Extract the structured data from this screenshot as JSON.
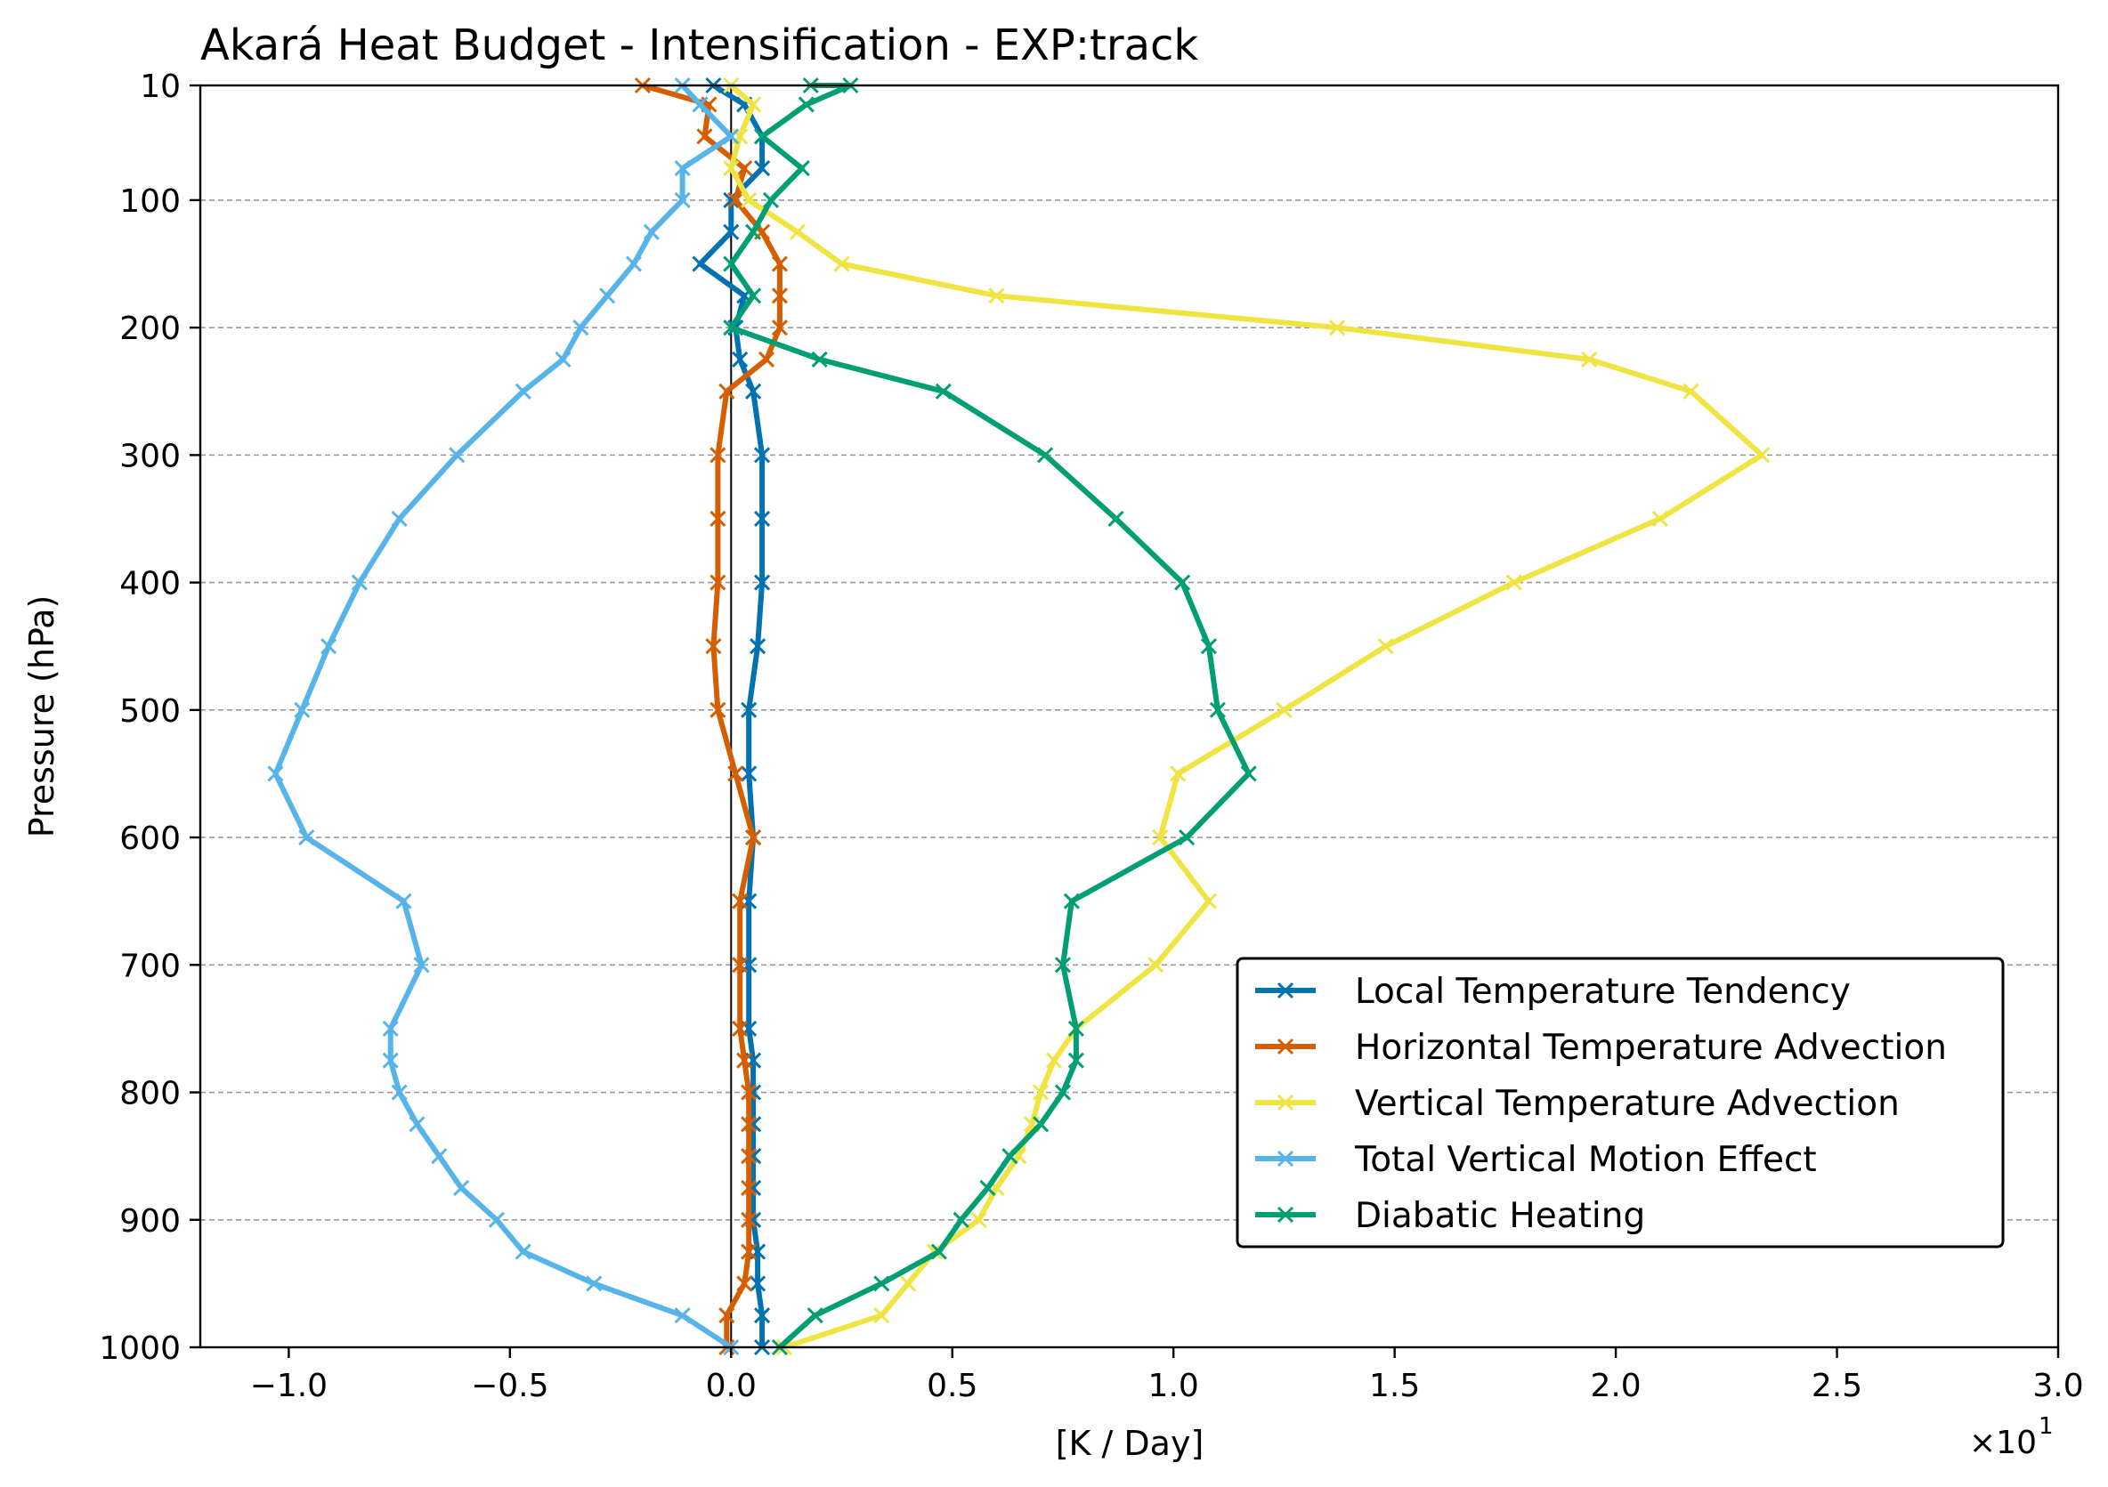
{
  "chart_data": {
    "type": "line",
    "title": "Akará Heat Budget - Intensification - EXP:track",
    "xlabel": "[K / Day]",
    "ylabel": "Pressure (hPa)",
    "x_scale_note": "×10",
    "x_scale_exponent": "1",
    "xlim": [
      -1.2,
      3.0
    ],
    "ylim": [
      1000,
      10
    ],
    "y_inverted": true,
    "xticks": [
      -1.0,
      -0.5,
      0.0,
      0.5,
      1.0,
      1.5,
      2.0,
      2.5,
      3.0
    ],
    "xtick_labels": [
      "−1.0",
      "−0.5",
      "0.0",
      "0.5",
      "1.0",
      "1.5",
      "2.0",
      "2.5",
      "3.0"
    ],
    "yticks": [
      10,
      100,
      200,
      300,
      400,
      500,
      600,
      700,
      800,
      900,
      1000
    ],
    "ytick_labels": [
      "10",
      "100",
      "200",
      "300",
      "400",
      "500",
      "600",
      "700",
      "800",
      "900",
      "1000"
    ],
    "grid": "horizontal dashed",
    "zero_line": true,
    "legend_position": "lower right",
    "series": [
      {
        "name": "Local Temperature Tendency",
        "color": "#0072b2",
        "points": [
          [
            0.07,
            1000
          ],
          [
            0.07,
            975
          ],
          [
            0.06,
            950
          ],
          [
            0.06,
            925
          ],
          [
            0.05,
            900
          ],
          [
            0.05,
            875
          ],
          [
            0.05,
            850
          ],
          [
            0.05,
            825
          ],
          [
            0.05,
            800
          ],
          [
            0.05,
            775
          ],
          [
            0.04,
            750
          ],
          [
            0.04,
            700
          ],
          [
            0.04,
            650
          ],
          [
            0.05,
            600
          ],
          [
            0.04,
            550
          ],
          [
            0.04,
            500
          ],
          [
            0.06,
            450
          ],
          [
            0.07,
            400
          ],
          [
            0.07,
            350
          ],
          [
            0.07,
            300
          ],
          [
            0.05,
            250
          ],
          [
            0.02,
            225
          ],
          [
            0.01,
            200
          ],
          [
            0.03,
            175
          ],
          [
            -0.07,
            150
          ],
          [
            0.0,
            125
          ],
          [
            0.0,
            100
          ],
          [
            0.07,
            75
          ],
          [
            0.07,
            50
          ],
          [
            0.03,
            25
          ],
          [
            -0.04,
            10
          ]
        ]
      },
      {
        "name": "Horizontal Temperature Advection",
        "color": "#d55e00",
        "points": [
          [
            -0.01,
            1000
          ],
          [
            -0.01,
            975
          ],
          [
            0.03,
            950
          ],
          [
            0.04,
            925
          ],
          [
            0.04,
            900
          ],
          [
            0.04,
            875
          ],
          [
            0.04,
            850
          ],
          [
            0.04,
            825
          ],
          [
            0.04,
            800
          ],
          [
            0.03,
            775
          ],
          [
            0.02,
            750
          ],
          [
            0.02,
            700
          ],
          [
            0.02,
            650
          ],
          [
            0.05,
            600
          ],
          [
            0.01,
            550
          ],
          [
            -0.03,
            500
          ],
          [
            -0.04,
            450
          ],
          [
            -0.03,
            400
          ],
          [
            -0.03,
            350
          ],
          [
            -0.03,
            300
          ],
          [
            -0.01,
            250
          ],
          [
            0.08,
            225
          ],
          [
            0.11,
            200
          ],
          [
            0.11,
            175
          ],
          [
            0.11,
            150
          ],
          [
            0.07,
            125
          ],
          [
            0.01,
            100
          ],
          [
            0.03,
            75
          ],
          [
            -0.06,
            50
          ],
          [
            -0.05,
            25
          ],
          [
            -0.2,
            10
          ]
        ]
      },
      {
        "name": "Vertical Temperature Advection",
        "color": "#f0e442",
        "points": [
          [
            0.12,
            1000
          ],
          [
            0.34,
            975
          ],
          [
            0.4,
            950
          ],
          [
            0.46,
            925
          ],
          [
            0.56,
            900
          ],
          [
            0.6,
            875
          ],
          [
            0.65,
            850
          ],
          [
            0.68,
            825
          ],
          [
            0.7,
            800
          ],
          [
            0.73,
            775
          ],
          [
            0.78,
            750
          ],
          [
            0.96,
            700
          ],
          [
            1.08,
            650
          ],
          [
            0.97,
            600
          ],
          [
            1.01,
            550
          ],
          [
            1.25,
            500
          ],
          [
            1.48,
            450
          ],
          [
            1.77,
            400
          ],
          [
            2.1,
            350
          ],
          [
            2.33,
            300
          ],
          [
            2.17,
            250
          ],
          [
            1.94,
            225
          ],
          [
            1.37,
            200
          ],
          [
            0.6,
            175
          ],
          [
            0.25,
            150
          ],
          [
            0.15,
            125
          ],
          [
            0.04,
            100
          ],
          [
            0.0,
            75
          ],
          [
            0.02,
            50
          ],
          [
            0.05,
            25
          ],
          [
            0.0,
            10
          ]
        ]
      },
      {
        "name": "Total Vertical Motion Effect",
        "color": "#56b4e9",
        "points": [
          [
            0.0,
            1000
          ],
          [
            -0.11,
            975
          ],
          [
            -0.31,
            950
          ],
          [
            -0.47,
            925
          ],
          [
            -0.53,
            900
          ],
          [
            -0.61,
            875
          ],
          [
            -0.66,
            850
          ],
          [
            -0.71,
            825
          ],
          [
            -0.75,
            800
          ],
          [
            -0.77,
            775
          ],
          [
            -0.77,
            750
          ],
          [
            -0.7,
            700
          ],
          [
            -0.74,
            650
          ],
          [
            -0.96,
            600
          ],
          [
            -1.03,
            550
          ],
          [
            -0.97,
            500
          ],
          [
            -0.91,
            450
          ],
          [
            -0.84,
            400
          ],
          [
            -0.75,
            350
          ],
          [
            -0.62,
            300
          ],
          [
            -0.47,
            250
          ],
          [
            -0.38,
            225
          ],
          [
            -0.34,
            200
          ],
          [
            -0.28,
            175
          ],
          [
            -0.22,
            150
          ],
          [
            -0.18,
            125
          ],
          [
            -0.11,
            100
          ],
          [
            -0.11,
            75
          ],
          [
            0.0,
            50
          ],
          [
            -0.07,
            25
          ],
          [
            -0.11,
            10
          ]
        ]
      },
      {
        "name": "Diabatic Heating",
        "color": "#009e73",
        "points": [
          [
            0.11,
            1000
          ],
          [
            0.19,
            975
          ],
          [
            0.34,
            950
          ],
          [
            0.47,
            925
          ],
          [
            0.52,
            900
          ],
          [
            0.58,
            875
          ],
          [
            0.63,
            850
          ],
          [
            0.7,
            825
          ],
          [
            0.75,
            800
          ],
          [
            0.78,
            775
          ],
          [
            0.78,
            750
          ],
          [
            0.75,
            700
          ],
          [
            0.77,
            650
          ],
          [
            1.03,
            600
          ],
          [
            1.17,
            550
          ],
          [
            1.1,
            500
          ],
          [
            1.08,
            450
          ],
          [
            1.02,
            400
          ],
          [
            0.87,
            350
          ],
          [
            0.71,
            300
          ],
          [
            0.48,
            250
          ],
          [
            0.2,
            225
          ],
          [
            0.0,
            200
          ],
          [
            0.05,
            175
          ],
          [
            0.0,
            150
          ],
          [
            0.05,
            125
          ],
          [
            0.09,
            100
          ],
          [
            0.16,
            75
          ],
          [
            0.07,
            50
          ],
          [
            0.17,
            25
          ],
          [
            0.27,
            10
          ],
          [
            0.18,
            10
          ]
        ]
      }
    ]
  }
}
